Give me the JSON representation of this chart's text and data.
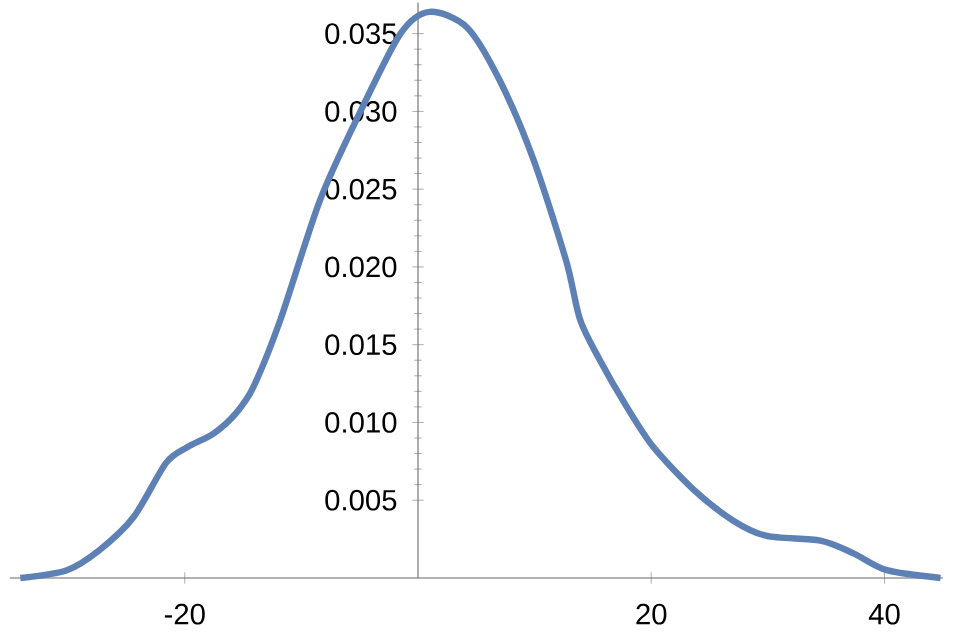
{
  "chart_data": {
    "type": "line",
    "xlim": [
      -35,
      45
    ],
    "ylim": [
      0,
      0.037
    ],
    "xticks": [
      -20,
      20,
      40
    ],
    "yticks": [
      0.005,
      {
        "value": 0.01,
        "label": "0.010"
      },
      0.015,
      {
        "value": 0.02,
        "label": "0.020"
      },
      0.025,
      {
        "value": 0.03,
        "label": "0.030"
      },
      0.035
    ],
    "series": [
      {
        "color": "#5e81b5",
        "x": [
          -34.1,
          -30.1,
          -27.3,
          -24.4,
          -21.6,
          -19.8,
          -17.5,
          -15.6,
          -14.1,
          -11.8,
          -8.4,
          -5.0,
          -1.5,
          1.0,
          4.2,
          7.0,
          9.9,
          12.7,
          13.9,
          15.6,
          17.9,
          20.2,
          23.6,
          27.0,
          29.9,
          34.5,
          37.3,
          40.2,
          44.8
        ],
        "values": [
          0,
          0.0005,
          0.0018,
          0.0039,
          0.0074,
          0.0084,
          0.0093,
          0.0106,
          0.0123,
          0.0166,
          0.0243,
          0.0299,
          0.035,
          0.0364,
          0.0354,
          0.032,
          0.0269,
          0.0204,
          0.0166,
          0.014,
          0.011,
          0.0084,
          0.0057,
          0.0037,
          0.0027,
          0.0024,
          0.0016,
          0.0005,
          0
        ]
      }
    ],
    "grid": false
  }
}
